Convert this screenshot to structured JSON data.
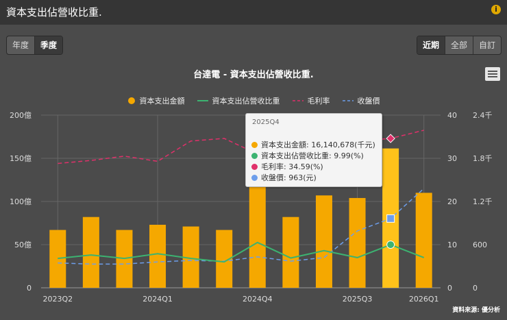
{
  "header": {
    "title": "資本支出佔營收比重."
  },
  "period_tabs": [
    {
      "label": "年度"
    },
    {
      "label": "季度"
    }
  ],
  "range_tabs": [
    {
      "label": "近期"
    },
    {
      "label": "全部"
    },
    {
      "label": "自訂"
    }
  ],
  "source": "資料來源: 優分析",
  "tooltip": {
    "period": "2025Q4",
    "rows": [
      {
        "text": "資本支出金額: 16,140,678(千元)",
        "color": "#f5a800"
      },
      {
        "text": "資本支出佔營收比重: 9.99(%)",
        "color": "#3cb371"
      },
      {
        "text": "毛利率: 34.59(%)",
        "color": "#e0306a"
      },
      {
        "text": "收盤價: 963(元)",
        "color": "#6d9eeb"
      }
    ]
  },
  "chart_data": {
    "type": "bar",
    "title": "台達電 - 資本支出佔營收比重.",
    "categories": [
      "2023Q2",
      "2023Q3",
      "2023Q4",
      "2024Q1",
      "2024Q2",
      "2024Q3",
      "2024Q4",
      "2025Q1",
      "2025Q2",
      "2025Q3",
      "2025Q4",
      "2026Q1"
    ],
    "x_tick_labels": [
      "2023Q2",
      "2024Q1",
      "2024Q4",
      "2025Q3",
      "2026Q1"
    ],
    "x_tick_index": [
      0,
      3,
      6,
      9,
      11
    ],
    "left_axis": {
      "ticks": [
        "0",
        "50億",
        "100億",
        "150億",
        "200億"
      ],
      "range": [
        0,
        200
      ]
    },
    "right_pct_axis": {
      "ticks": [
        "0",
        "10",
        "20",
        "30",
        "40"
      ],
      "range": [
        0,
        40
      ]
    },
    "right_price_axis": {
      "ticks": [
        "0",
        "600",
        "1.2千",
        "1.8千",
        "2.4千"
      ],
      "range": [
        0,
        2400
      ]
    },
    "series": [
      {
        "name": "資本支出金額",
        "axis": "left",
        "color": "#f5a800",
        "values": [
          67,
          82,
          67,
          73,
          71,
          67,
          150,
          82,
          107,
          104,
          161.4,
          110
        ]
      },
      {
        "name": "資本支出佔營收比重",
        "axis": "right_pct",
        "color": "#3cb371",
        "values": [
          6.8,
          7.6,
          6.8,
          7.9,
          6.8,
          6.0,
          10.5,
          6.9,
          8.6,
          7.0,
          9.99,
          7.0
        ]
      },
      {
        "name": "毛利率",
        "axis": "right_pct",
        "color": "#e0306a",
        "values": [
          28.8,
          29.5,
          30.5,
          29.3,
          34.0,
          34.6,
          31.0,
          30.5,
          33.0,
          34.0,
          34.59,
          36.5
        ]
      },
      {
        "name": "收盤價",
        "axis": "right_price",
        "color": "#6d9eeb",
        "values": [
          345,
          330,
          330,
          360,
          380,
          370,
          430,
          370,
          420,
          790,
          963,
          1380
        ]
      }
    ],
    "highlight_index": 10,
    "grid": true,
    "legend_position": "top"
  }
}
